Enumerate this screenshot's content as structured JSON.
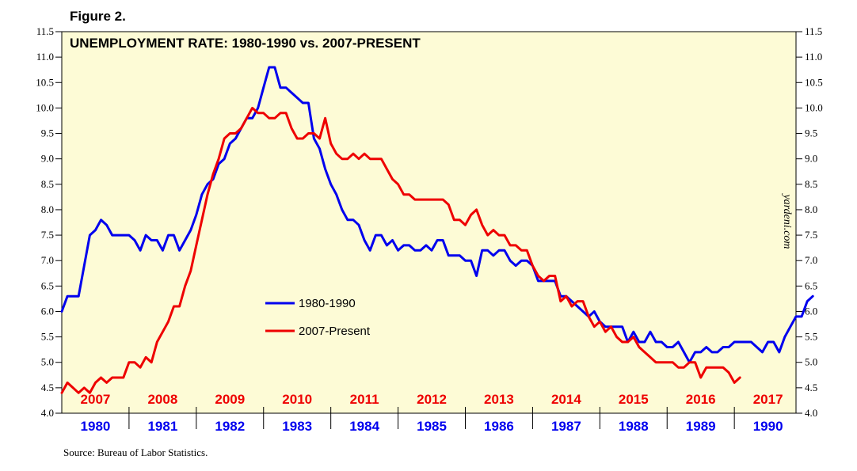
{
  "figure_label": "Figure 2.",
  "source": "Source: Bureau of Labor Statistics.",
  "watermark": "yardeni.com",
  "colors": {
    "background": "#fdfbd6",
    "series_1980": "#0000ee",
    "series_2007": "#ee0000"
  },
  "chart_data": {
    "type": "line",
    "title": "UNEMPLOYMENT RATE: 1980-1990 vs. 2007-PRESENT",
    "ylim": [
      4.0,
      11.5
    ],
    "y_ticks": [
      "4.0",
      "4.5",
      "5.0",
      "5.5",
      "6.0",
      "6.5",
      "7.0",
      "7.5",
      "8.0",
      "8.5",
      "9.0",
      "9.5",
      "10.0",
      "10.5",
      "11.0",
      "11.5"
    ],
    "x_unit": "months since January of first year",
    "xlim": [
      0,
      131
    ],
    "legend_position": "center-left",
    "top_axis_labels": [
      "2007",
      "2008",
      "2009",
      "2010",
      "2011",
      "2012",
      "2013",
      "2014",
      "2015",
      "2016",
      "2017"
    ],
    "bottom_axis_labels": [
      "1980",
      "1981",
      "1982",
      "1983",
      "1984",
      "1985",
      "1986",
      "1987",
      "1988",
      "1989",
      "1990"
    ],
    "series": [
      {
        "name": "1980-1990",
        "color": "#0000ee",
        "values": [
          6.0,
          6.3,
          6.3,
          6.3,
          6.9,
          7.5,
          7.6,
          7.8,
          7.7,
          7.5,
          7.5,
          7.5,
          7.5,
          7.4,
          7.2,
          7.5,
          7.4,
          7.4,
          7.2,
          7.5,
          7.5,
          7.2,
          7.4,
          7.6,
          7.9,
          8.3,
          8.5,
          8.6,
          8.9,
          9.0,
          9.3,
          9.4,
          9.6,
          9.8,
          9.8,
          10.0,
          10.4,
          10.8,
          10.8,
          10.4,
          10.4,
          10.3,
          10.2,
          10.1,
          10.1,
          9.4,
          9.2,
          8.8,
          8.5,
          8.3,
          8.0,
          7.8,
          7.8,
          7.7,
          7.4,
          7.2,
          7.5,
          7.5,
          7.3,
          7.4,
          7.2,
          7.3,
          7.3,
          7.2,
          7.2,
          7.3,
          7.2,
          7.4,
          7.4,
          7.1,
          7.1,
          7.1,
          7.0,
          7.0,
          6.7,
          7.2,
          7.2,
          7.1,
          7.2,
          7.2,
          7.0,
          6.9,
          7.0,
          7.0,
          6.9,
          6.6,
          6.6,
          6.6,
          6.6,
          6.3,
          6.3,
          6.2,
          6.1,
          6.0,
          5.9,
          6.0,
          5.8,
          5.7,
          5.7,
          5.7,
          5.7,
          5.4,
          5.6,
          5.4,
          5.4,
          5.6,
          5.4,
          5.4,
          5.3,
          5.3,
          5.4,
          5.2,
          5.0,
          5.2,
          5.2,
          5.3,
          5.2,
          5.2,
          5.3,
          5.3,
          5.4,
          5.4,
          5.4,
          5.4,
          5.3,
          5.2,
          5.4,
          5.4,
          5.2,
          5.5,
          5.7,
          5.9,
          5.9,
          6.2,
          6.3
        ]
      },
      {
        "name": "2007-Present",
        "color": "#ee0000",
        "values": [
          4.4,
          4.6,
          4.5,
          4.4,
          4.5,
          4.4,
          4.6,
          4.7,
          4.6,
          4.7,
          4.7,
          4.7,
          5.0,
          5.0,
          4.9,
          5.1,
          5.0,
          5.4,
          5.6,
          5.8,
          6.1,
          6.1,
          6.5,
          6.8,
          7.3,
          7.8,
          8.3,
          8.7,
          9.0,
          9.4,
          9.5,
          9.5,
          9.6,
          9.8,
          10.0,
          9.9,
          9.9,
          9.8,
          9.8,
          9.9,
          9.9,
          9.6,
          9.4,
          9.4,
          9.5,
          9.5,
          9.4,
          9.8,
          9.3,
          9.1,
          9.0,
          9.0,
          9.1,
          9.0,
          9.1,
          9.0,
          9.0,
          9.0,
          8.8,
          8.6,
          8.5,
          8.3,
          8.3,
          8.2,
          8.2,
          8.2,
          8.2,
          8.2,
          8.2,
          8.1,
          7.8,
          7.8,
          7.7,
          7.9,
          8.0,
          7.7,
          7.5,
          7.6,
          7.5,
          7.5,
          7.3,
          7.3,
          7.2,
          7.2,
          6.9,
          6.7,
          6.6,
          6.7,
          6.7,
          6.2,
          6.3,
          6.1,
          6.2,
          6.2,
          5.9,
          5.7,
          5.8,
          5.6,
          5.7,
          5.5,
          5.4,
          5.4,
          5.5,
          5.3,
          5.2,
          5.1,
          5.0,
          5.0,
          5.0,
          5.0,
          4.9,
          4.9,
          5.0,
          5.0,
          4.7,
          4.9,
          4.9,
          4.9,
          4.9,
          4.8,
          4.6,
          4.7
        ]
      }
    ]
  }
}
